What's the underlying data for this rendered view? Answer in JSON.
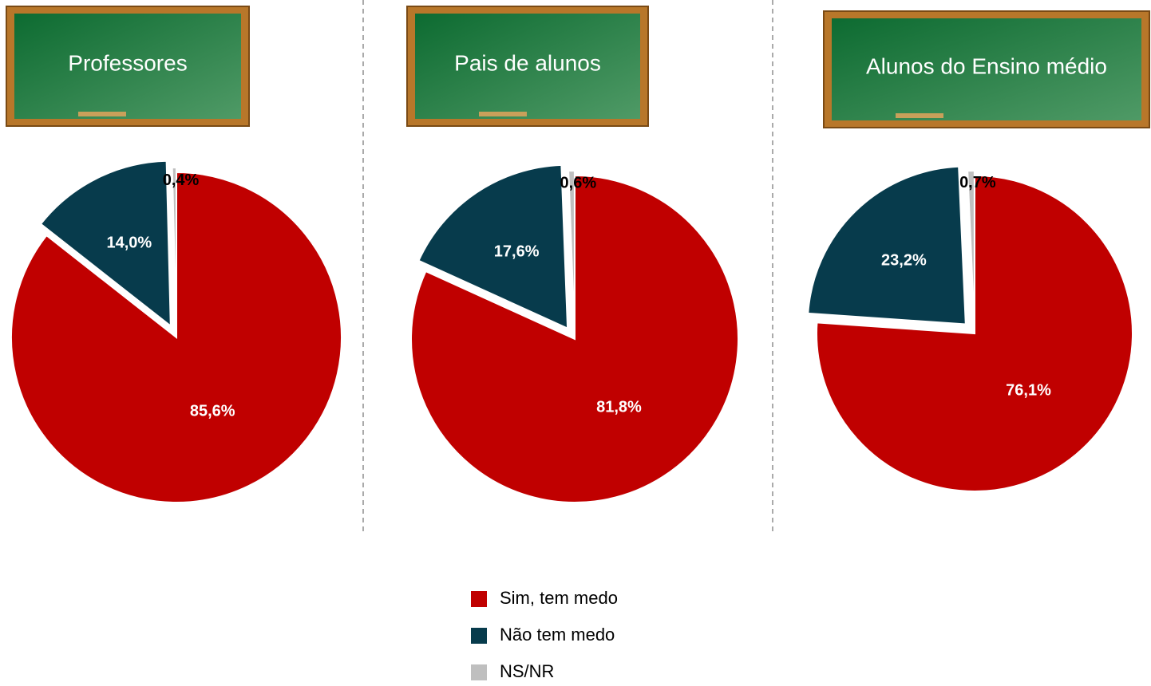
{
  "chart_data": [
    {
      "type": "pie",
      "title": "Professores",
      "categories": [
        "Sim, tem medo",
        "Não tem medo",
        "NS/NR"
      ],
      "values": [
        85.6,
        14.0,
        0.4
      ],
      "value_labels": [
        "85,6%",
        "14,0%",
        "0,4%"
      ],
      "colors": [
        "#c00000",
        "#073b4c",
        "#bfbfbf"
      ]
    },
    {
      "type": "pie",
      "title": "Pais de alunos",
      "categories": [
        "Sim, tem medo",
        "Não tem medo",
        "NS/NR"
      ],
      "values": [
        81.8,
        17.6,
        0.6
      ],
      "value_labels": [
        "81,8%",
        "17,6%",
        "0,6%"
      ],
      "colors": [
        "#c00000",
        "#073b4c",
        "#bfbfbf"
      ]
    },
    {
      "type": "pie",
      "title": "Alunos do Ensino médio",
      "categories": [
        "Sim, tem medo",
        "Não tem medo",
        "NS/NR"
      ],
      "values": [
        76.1,
        23.2,
        0.7
      ],
      "value_labels": [
        "76,1%",
        "23,2%",
        "0,7%"
      ],
      "colors": [
        "#c00000",
        "#073b4c",
        "#bfbfbf"
      ]
    }
  ]
}
